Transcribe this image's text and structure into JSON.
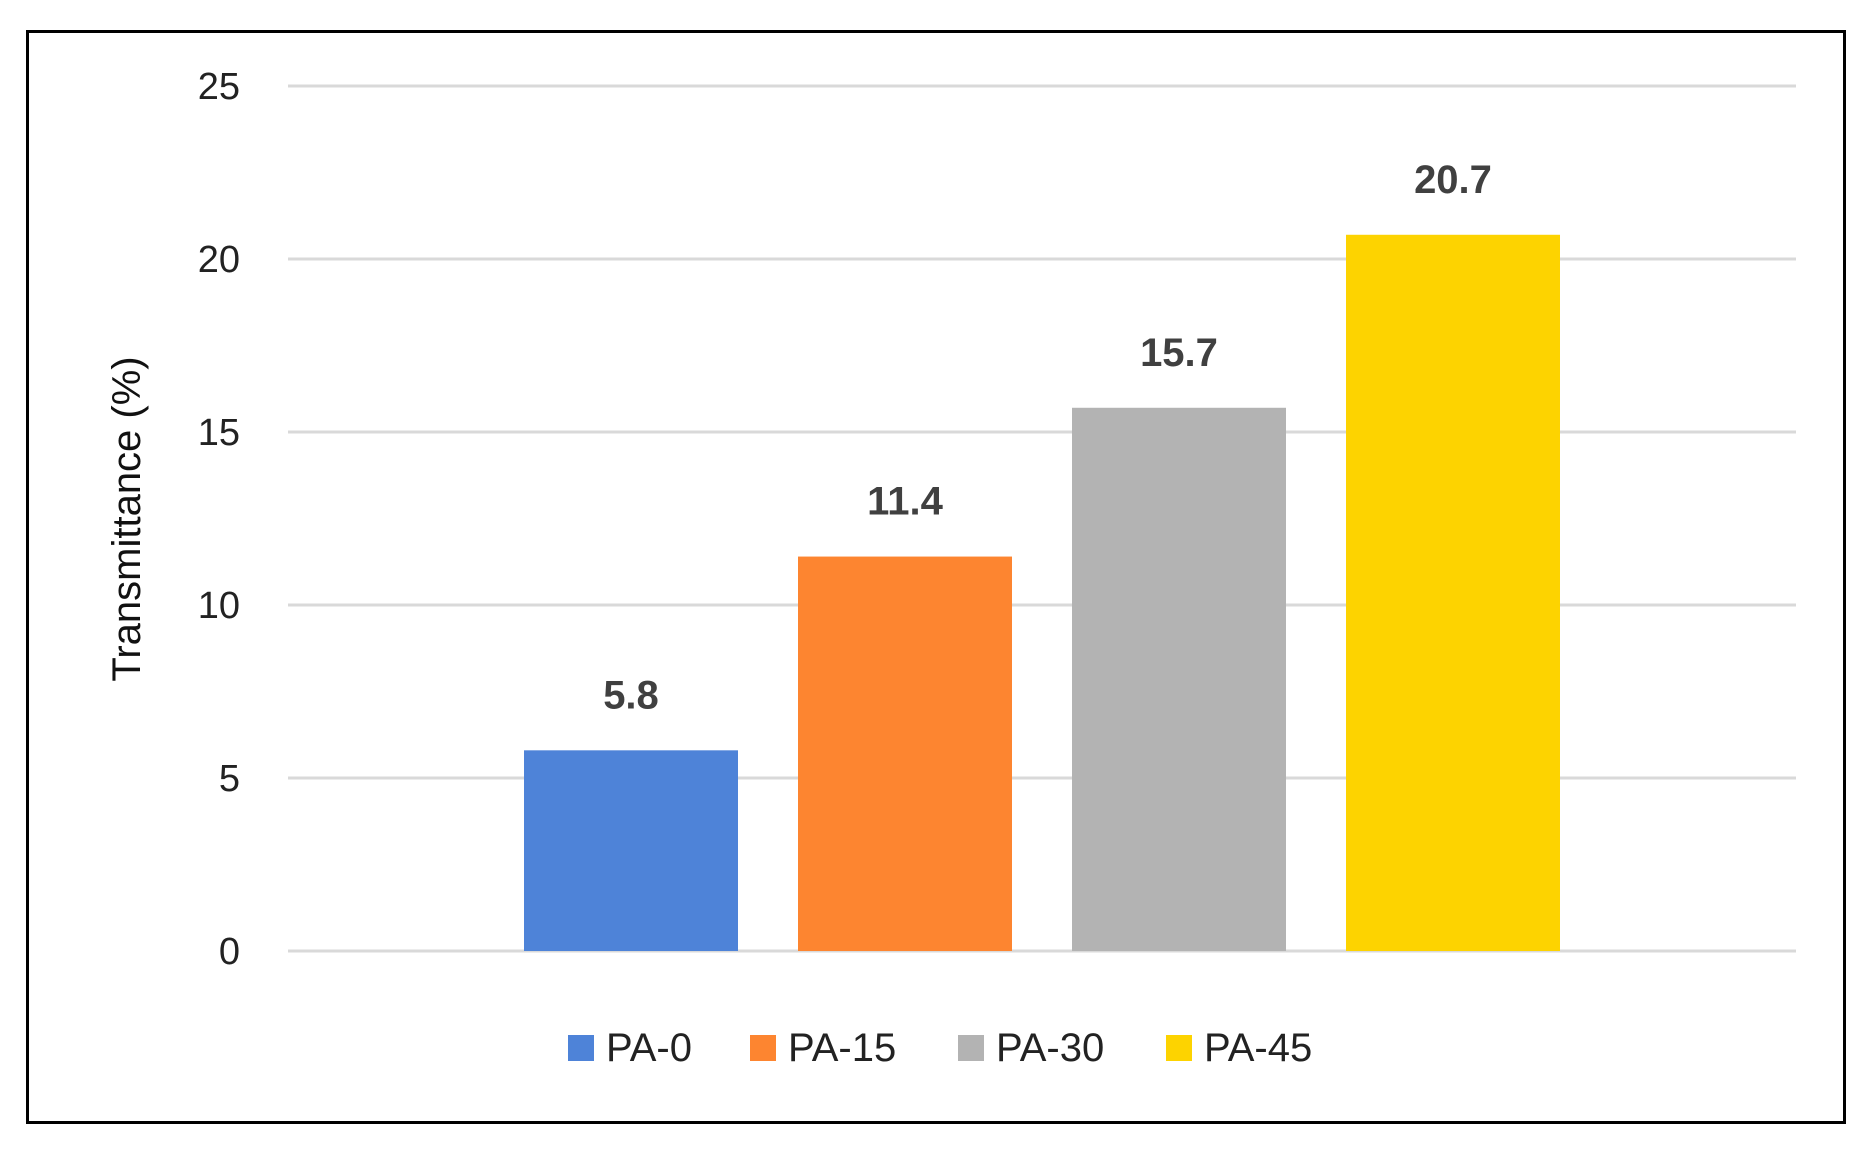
{
  "chart_data": {
    "type": "bar",
    "title": "",
    "xlabel": "",
    "ylabel": "Transmittance (%)",
    "ylim": [
      0,
      25
    ],
    "yticks": [
      0,
      5,
      10,
      15,
      20,
      25
    ],
    "grid": true,
    "legend_position": "bottom",
    "series": [
      {
        "name": "PA-0",
        "value": 5.8,
        "label": "5.8",
        "color": "#4E83D8"
      },
      {
        "name": "PA-15",
        "value": 11.4,
        "label": "11.4",
        "color": "#FD8530"
      },
      {
        "name": "PA-30",
        "value": 15.7,
        "label": "15.7",
        "color": "#B3B3B3"
      },
      {
        "name": "PA-45",
        "value": 20.7,
        "label": "20.7",
        "color": "#FDD300"
      }
    ]
  }
}
